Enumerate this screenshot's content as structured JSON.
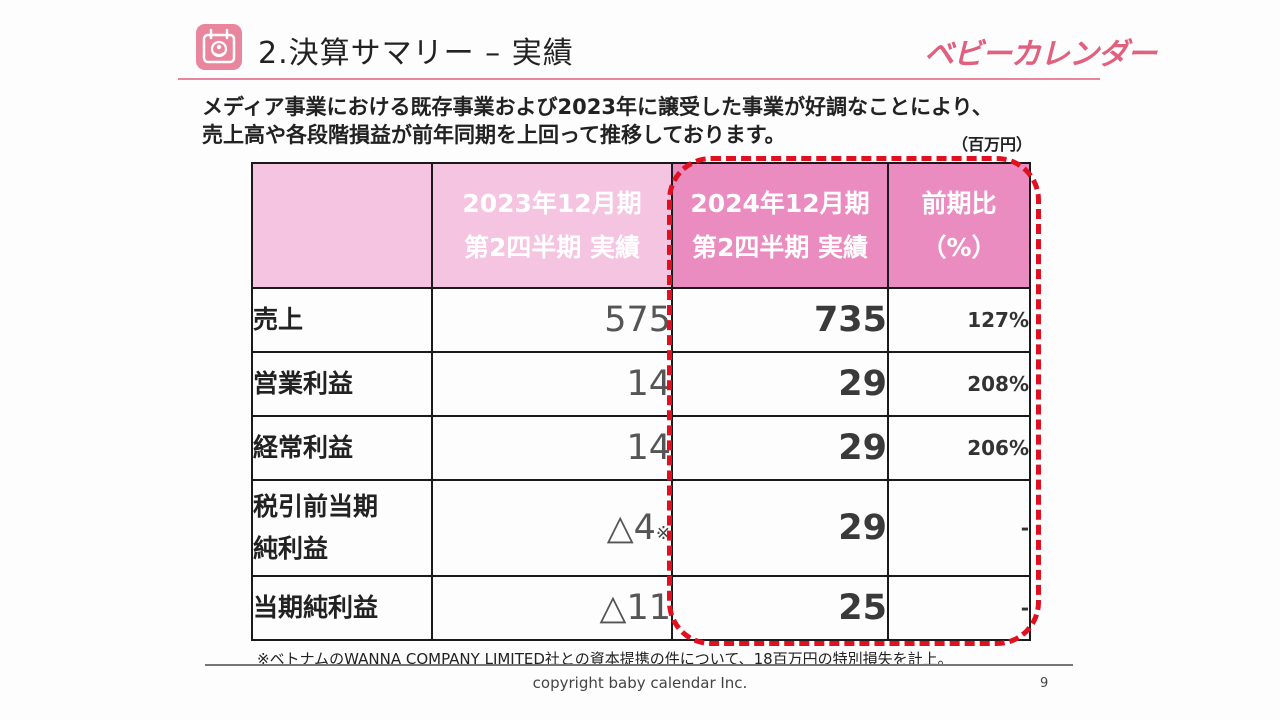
{
  "header": {
    "title": "2.決算サマリー – 実績",
    "logo_text": "ベビーカレンダー",
    "icon": "calendar-baby-icon",
    "accent_color": "#e9869e"
  },
  "intro": {
    "line1": "メディア事業における既存事業および2023年に譲受した事業が好調なことにより、",
    "line2": "売上高や各段階損益が前年同期を上回って推移しております。"
  },
  "unit": "（百万円）",
  "table": {
    "headers": {
      "prev": [
        "2023年12月期",
        "第2四半期 実績"
      ],
      "current": [
        "2024年12月期",
        "第2四半期 実績"
      ],
      "ratio": [
        "前期比",
        "（%）"
      ]
    },
    "rows": [
      {
        "label": [
          "売上"
        ],
        "prev": "575",
        "prev_note": "",
        "current": "735",
        "ratio": "127%"
      },
      {
        "label": [
          "営業利益"
        ],
        "prev": "14",
        "prev_note": "",
        "current": "29",
        "ratio": "208%"
      },
      {
        "label": [
          "経常利益"
        ],
        "prev": "14",
        "prev_note": "",
        "current": "29",
        "ratio": "206%"
      },
      {
        "label": [
          "税引前当期",
          "純利益"
        ],
        "prev": "△4",
        "prev_note": "※",
        "current": "29",
        "ratio": "-"
      },
      {
        "label": [
          "当期純利益"
        ],
        "prev": "△11",
        "prev_note": "",
        "current": "25",
        "ratio": "-"
      }
    ],
    "header_color_light": "#f4c4e0",
    "header_color_dark": "#ea8cc0",
    "highlight_color": "#e01020"
  },
  "footnote": "※ベトナムのWANNA COMPANY LIMITED社との資本提携の件について、18百万円の特別損失を計上。",
  "footer": {
    "copyright": "copyright baby calendar Inc.",
    "page_number": "9"
  }
}
